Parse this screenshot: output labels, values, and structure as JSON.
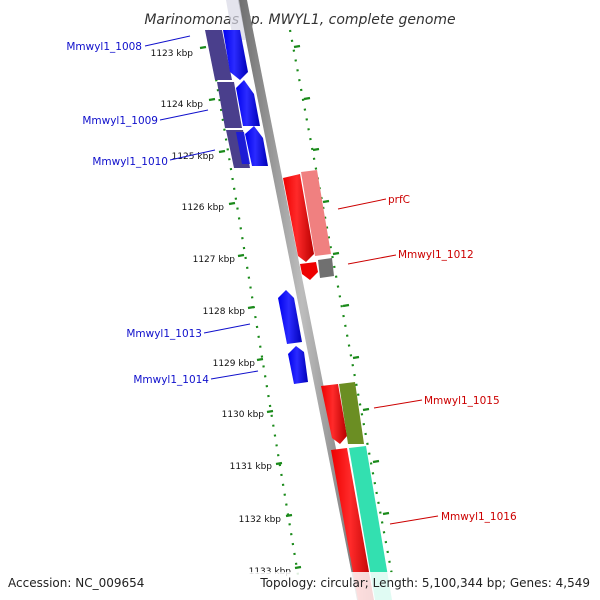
{
  "title": "Marinomonas sp. MWYL1, complete genome",
  "footer": {
    "accession": "Accession: NC_009654",
    "summary": "Topology: circular; Length: 5,100,344 bp; Genes: 4,549"
  },
  "ticks": [
    {
      "label": "1123 kbp",
      "kbp": 1123
    },
    {
      "label": "1124 kbp",
      "kbp": 1124
    },
    {
      "label": "1125 kbp",
      "kbp": 1125
    },
    {
      "label": "1126 kbp",
      "kbp": 1126
    },
    {
      "label": "1127 kbp",
      "kbp": 1127
    },
    {
      "label": "1128 kbp",
      "kbp": 1128
    },
    {
      "label": "1129 kbp",
      "kbp": 1129
    },
    {
      "label": "1130 kbp",
      "kbp": 1130
    },
    {
      "label": "1131 kbp",
      "kbp": 1131
    },
    {
      "label": "1132 kbp",
      "kbp": 1132
    },
    {
      "label": "1133 kbp",
      "kbp": 1133
    }
  ],
  "labels": [
    {
      "text": "Mmwyl1_1008",
      "strand": "minus"
    },
    {
      "text": "Mmwyl1_1009",
      "strand": "minus"
    },
    {
      "text": "Mmwyl1_1010",
      "strand": "minus"
    },
    {
      "text": "prfC",
      "strand": "plus"
    },
    {
      "text": "Mmwyl1_1012",
      "strand": "plus"
    },
    {
      "text": "Mmwyl1_1013",
      "strand": "minus"
    },
    {
      "text": "Mmwyl1_1014",
      "strand": "minus"
    },
    {
      "text": "Mmwyl1_1015",
      "strand": "plus"
    },
    {
      "text": "Mmwyl1_1016",
      "strand": "plus"
    }
  ],
  "colors": {
    "minus_label": "#1010cc",
    "plus_label": "#cc0000",
    "gene_minus": "#0000ee",
    "gene_plus": "#ee0000",
    "backbone": "#888888",
    "tick": "#1a8a1a",
    "cds_minus": "#4a3f8c",
    "cds_plus_pink": "#f08080",
    "cds_plus_olive": "#6b8e23",
    "cds_plus_teal": "#33e0b0",
    "cds_gray": "#707070"
  }
}
